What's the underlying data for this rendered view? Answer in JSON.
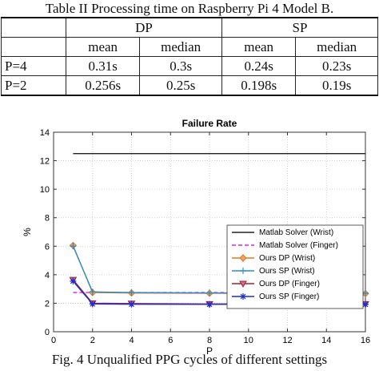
{
  "table": {
    "caption": "Table II Processing time on Raspberry Pi 4 Model B.",
    "group_headers": [
      "DP",
      "SP"
    ],
    "sub_headers": [
      "mean",
      "median",
      "mean",
      "median"
    ],
    "rows": [
      {
        "label": "P=4",
        "values": [
          "0.31s",
          "0.3s",
          "0.24s",
          "0.23s"
        ]
      },
      {
        "label": "P=2",
        "values": [
          "0.256s",
          "0.25s",
          "0.198s",
          "0.19s"
        ]
      }
    ]
  },
  "chart_data": {
    "type": "line",
    "title": "Failure Rate",
    "xlabel": "P",
    "ylabel": "%",
    "xlim": [
      0,
      16
    ],
    "ylim": [
      0,
      14
    ],
    "xticks": [
      0,
      2,
      4,
      6,
      8,
      10,
      12,
      14,
      16
    ],
    "yticks": [
      0,
      2,
      4,
      6,
      8,
      10,
      12,
      14
    ],
    "grid": true,
    "legend_position": "right",
    "series": [
      {
        "name": "Matlab Solver (Wrist)",
        "color": "#222222",
        "style": "solid",
        "marker": "none",
        "x": [
          1,
          16
        ],
        "y": [
          12.5,
          12.5
        ]
      },
      {
        "name": "Matlab Solver (Finger)",
        "color": "#e020e0",
        "style": "dashed",
        "marker": "none",
        "x": [
          1,
          16
        ],
        "y": [
          2.75,
          2.75
        ]
      },
      {
        "name": "Ours DP (Wrist)",
        "color": "#e07820",
        "style": "solid",
        "marker": "diamond",
        "x": [
          1,
          2,
          4,
          8,
          16
        ],
        "y": [
          6.05,
          2.75,
          2.72,
          2.7,
          2.68
        ]
      },
      {
        "name": "Ours SP (Wrist)",
        "color": "#2a8fc8",
        "style": "solid",
        "marker": "plus",
        "x": [
          1,
          2,
          4,
          8,
          16
        ],
        "y": [
          6.0,
          2.8,
          2.75,
          2.72,
          2.7
        ]
      },
      {
        "name": "Ours DP (Finger)",
        "color": "#a0203a",
        "style": "solid",
        "marker": "triangle-down",
        "x": [
          1,
          2,
          4,
          8,
          16
        ],
        "y": [
          3.65,
          2.0,
          1.98,
          1.95,
          1.95
        ]
      },
      {
        "name": "Ours SP (Finger)",
        "color": "#1c2fd0",
        "style": "solid",
        "marker": "star",
        "x": [
          1,
          2,
          4,
          8,
          16
        ],
        "y": [
          3.55,
          1.95,
          1.93,
          1.92,
          1.92
        ]
      }
    ]
  },
  "figure": {
    "caption": "Fig. 4 Unqualified PPG cycles of different settings"
  }
}
